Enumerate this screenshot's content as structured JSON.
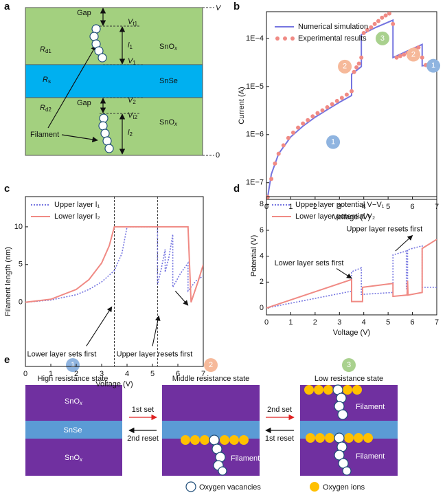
{
  "chart_data": [
    {
      "type": "line",
      "panel": "b",
      "xlabel": "Voltage (V)",
      "ylabel": "Current (A)",
      "xlim": [
        0,
        7
      ],
      "xticks": [
        0,
        1,
        2,
        3,
        4,
        5,
        6,
        7
      ],
      "ylim": [
        4.5e-08,
        0.00036
      ],
      "log_y": true,
      "yticks": [
        {
          "value": 1e-07,
          "label": "1E−7"
        },
        {
          "value": 1e-06,
          "label": "1E−6"
        },
        {
          "value": 1e-05,
          "label": "1E−5"
        },
        {
          "value": 0.0001,
          "label": "1E−4"
        }
      ],
      "legend": "upper left",
      "series": [
        {
          "name": "Numerical simulation",
          "color": "#7474e0",
          "style": "solid",
          "x": [
            0.05,
            0.2,
            0.5,
            1,
            1.5,
            2,
            2.5,
            3,
            3.5,
            3.5,
            3.9,
            3.9,
            4.5,
            5.2,
            5.2,
            5.8,
            6.4,
            6.4,
            7
          ],
          "values": [
            5e-08,
            1.5e-07,
            4e-07,
            9e-07,
            1.5e-06,
            2.3e-06,
            3.3e-06,
            4.7e-06,
            6.5e-06,
            1.8e-05,
            2.6e-05,
            0.00012,
            0.00017,
            0.00024,
            4e-05,
            5.5e-05,
            7.5e-05,
            2.7e-05,
            3e-05
          ]
        },
        {
          "name": "Experimental results",
          "color": "#f08a84",
          "style": "markers",
          "x": [
            0.05,
            0.2,
            0.35,
            0.5,
            0.7,
            0.9,
            1.1,
            1.3,
            1.5,
            1.7,
            1.9,
            2.1,
            2.3,
            2.5,
            2.7,
            2.9,
            3.1,
            3.3,
            3.5,
            3.6,
            3.7,
            3.8,
            3.9,
            4.0,
            4.15,
            4.3,
            4.45,
            4.6,
            4.75,
            4.9,
            5.05,
            5.2,
            5.35,
            5.5,
            5.65,
            5.8,
            5.95,
            6.1,
            6.25,
            6.4,
            6.55,
            6.7,
            6.85,
            7.0
          ],
          "values": [
            5e-08,
            1.2e-07,
            2.5e-07,
            4e-07,
            6e-07,
            8.5e-07,
            1.1e-06,
            1.4e-06,
            1.7e-06,
            2e-06,
            2.4e-06,
            2.8e-06,
            3.2e-06,
            3.7e-06,
            4.3e-06,
            5e-06,
            5.8e-06,
            6.8e-06,
            8e-06,
            2e-05,
            2.5e-05,
            3e-05,
            4e-05,
            0.00013,
            0.00015,
            0.00017,
            0.0002,
            0.00023,
            0.00027,
            0.0003,
            0.00033,
            0.0002,
            4e-05,
            4.3e-05,
            4.6e-05,
            5e-05,
            5.5e-05,
            6e-05,
            6.5e-05,
            4e-05,
            2.8e-05,
            2.9e-05,
            3e-05,
            3.1e-05
          ]
        }
      ],
      "annotations": [
        {
          "text": "1",
          "x": 2.74,
          "y": 7e-07,
          "color": "#8fb4e0"
        },
        {
          "text": "2",
          "x": 3.22,
          "y": 2.6e-05,
          "color": "#f6b99a"
        },
        {
          "text": "3",
          "x": 4.77,
          "y": 0.0001,
          "color": "#a9d18e"
        },
        {
          "text": "2",
          "x": 6.04,
          "y": 4.6e-05,
          "color": "#f6b99a"
        },
        {
          "text": "1",
          "x": 6.86,
          "y": 2.7e-05,
          "color": "#8fb4e0"
        }
      ]
    },
    {
      "type": "line",
      "panel": "c",
      "xlabel": "Voltage (V)",
      "ylabel": "Filament length (nm)",
      "xlim": [
        0,
        7
      ],
      "xticks": [
        0,
        1,
        2,
        3,
        4,
        5,
        6,
        7
      ],
      "ylim": [
        -8.5,
        14
      ],
      "yticks": [
        0,
        5,
        10
      ],
      "legend": "upper left",
      "vlines": [
        3.5,
        5.2
      ],
      "series": [
        {
          "name": "Upper layer l₁",
          "color": "#7474e0",
          "style": "dotted",
          "x": [
            0,
            1,
            2,
            2.5,
            3,
            3.5,
            3.8,
            4.0,
            5.2,
            5.2,
            5.35,
            5.5,
            5.5,
            5.65,
            5.8,
            5.8,
            6.1,
            6.4,
            6.4,
            6.7,
            7
          ],
          "values": [
            0,
            0.3,
            1,
            1.7,
            2.7,
            4.2,
            6.5,
            10,
            10,
            2.3,
            4.5,
            7,
            4,
            6,
            9,
            2,
            3.8,
            5.2,
            1.5,
            2.8,
            3.5
          ]
        },
        {
          "name": "Lower layer l₂",
          "color": "#f08a84",
          "style": "solid",
          "x": [
            0,
            1,
            2,
            2.5,
            3,
            3.3,
            3.5,
            6.4,
            6.52,
            6.8,
            7
          ],
          "values": [
            0,
            0.4,
            1.7,
            3,
            5.2,
            7.5,
            10,
            10,
            0,
            2.8,
            5
          ]
        }
      ],
      "annotations": [
        {
          "text": "Lower layer sets first",
          "x": 1.43,
          "y": -6.9,
          "arrows": [
            [
              2.4,
              -5.8,
              3.4,
              -0.6
            ]
          ]
        },
        {
          "text": "Upper layer resets first",
          "x": 5.08,
          "y": -6.9,
          "arrows": [
            [
              5.0,
              -5.8,
              5.25,
              -1.8
            ],
            [
              5.9,
              1.5,
              6.4,
              -0.4
            ]
          ]
        }
      ]
    },
    {
      "type": "line",
      "panel": "d",
      "xlabel": "Voltage (V)",
      "ylabel": "Potential (V)",
      "xlim": [
        0,
        7
      ],
      "xticks": [
        0,
        1,
        2,
        3,
        4,
        5,
        6,
        7
      ],
      "ylim": [
        -0.53,
        8.6
      ],
      "yticks": [
        0,
        2,
        4,
        6,
        8
      ],
      "legend": "upper left",
      "series": [
        {
          "name": "Upper layer potential V−V₁",
          "color": "#7474e0",
          "style": "dotted",
          "x": [
            0,
            3.5,
            3.5,
            3.9,
            3.9,
            5.2,
            5.2,
            5.75,
            5.75,
            5.8,
            5.8,
            6.4,
            6.4,
            7
          ],
          "values": [
            0,
            1.3,
            2.8,
            3.1,
            1.05,
            1.2,
            4.1,
            4.4,
            1.5,
            1.5,
            4.5,
            4.8,
            1.6,
            1.6
          ]
        },
        {
          "name": "Lower layer potential V₂",
          "color": "#f08a84",
          "style": "solid",
          "x": [
            0,
            3.5,
            3.5,
            3.95,
            3.95,
            5.2,
            5.2,
            5.78,
            5.8,
            5.82,
            6.4,
            6.4,
            7
          ],
          "values": [
            0,
            2.2,
            0.5,
            0.5,
            1.6,
            1.9,
            0.9,
            1,
            2.1,
            1,
            1.2,
            4.6,
            5.3
          ]
        }
      ],
      "annotations": [
        {
          "text": "Lower layer sets first",
          "x": 1.75,
          "y": 3.44,
          "arrows": [
            [
              2.88,
              3.05,
              3.5,
              2.3
            ]
          ]
        },
        {
          "text": "Upper layer resets first",
          "x": 4.85,
          "y": 6.08,
          "arrows": [
            [
              5.3,
              4.4,
              6.0,
              5.6
            ]
          ]
        }
      ]
    }
  ],
  "diagram_a": {
    "panel": "a",
    "gap_top": "Gap",
    "vt1": {
      "text": "V",
      "sub": "t1"
    },
    "l1": {
      "text": "l",
      "sub": "1"
    },
    "snox_top": {
      "text": "SnO",
      "sub": "x"
    },
    "rd1": {
      "text": "R",
      "sub": "d1"
    },
    "v1": {
      "text": "V",
      "sub": "1"
    },
    "rs": {
      "text": "R",
      "sub": "s"
    },
    "snse": "SnSe",
    "v2": {
      "text": "V",
      "sub": "2"
    },
    "gap_bottom": "Gap",
    "rd2": {
      "text": "R",
      "sub": "d2"
    },
    "vt2": {
      "text": "V",
      "sub": "t2"
    },
    "snox_bottom": {
      "text": "SnO",
      "sub": "x"
    },
    "l2": {
      "text": "l",
      "sub": "2"
    },
    "filament": "Filament",
    "top_potential": "V",
    "bottom_potential": "0"
  },
  "diagram_e": {
    "panel": "e",
    "states": [
      {
        "number": "1",
        "title": "High resistance state"
      },
      {
        "number": "2",
        "title": "Middle resistance state"
      },
      {
        "number": "3",
        "title": "Low resistance state"
      }
    ],
    "layers": {
      "top": {
        "text": "SnO",
        "sub": "x"
      },
      "middle": "SnSe",
      "bottom": {
        "text": "SnO",
        "sub": "x"
      }
    },
    "transitions": [
      {
        "forward": "1st set",
        "backward": "2nd reset"
      },
      {
        "forward": "2nd set",
        "backward": "1st reset"
      }
    ],
    "filament_labels": [
      "Filament",
      "Filament",
      "Filament"
    ],
    "legend": [
      "Oxygen vacancies",
      "Oxygen ions"
    ]
  }
}
